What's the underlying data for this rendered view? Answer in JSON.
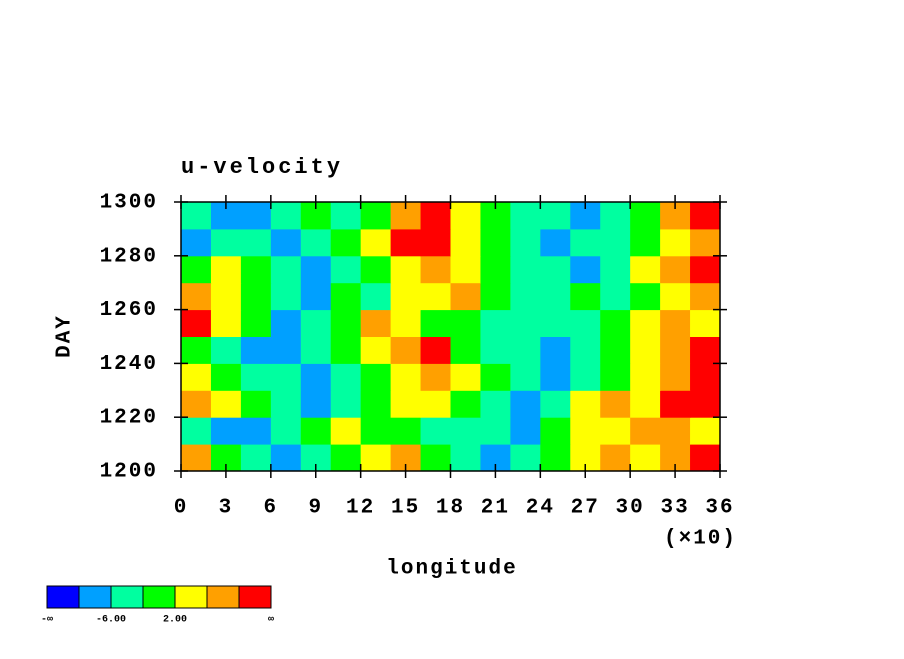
{
  "chart_data": {
    "type": "heatmap",
    "title": "u-velocity",
    "xlabel": "longitude",
    "ylabel": "DAY",
    "x_multiplier_label": "(×10)",
    "xlim": [
      0,
      36
    ],
    "xticks": [
      0,
      3,
      6,
      9,
      12,
      15,
      18,
      21,
      24,
      27,
      30,
      33,
      36
    ],
    "ylim": [
      1200,
      1300
    ],
    "yticks": [
      1200,
      1220,
      1240,
      1260,
      1280,
      1300
    ],
    "x": [
      1,
      3,
      5,
      7,
      9,
      11,
      13,
      15,
      17,
      19,
      21,
      23,
      25,
      27,
      29,
      31,
      33,
      35
    ],
    "y": [
      1205,
      1215,
      1225,
      1235,
      1245,
      1255,
      1265,
      1275,
      1285,
      1295
    ],
    "z": [
      [
        8,
        0,
        -4,
        -8,
        -4,
        0,
        4,
        8,
        0,
        -4,
        -8,
        -4,
        0,
        4,
        8,
        4,
        8,
        12
      ],
      [
        -4,
        -8,
        -8,
        -4,
        0,
        4,
        0,
        0,
        -4,
        -4,
        -4,
        -8,
        0,
        4,
        4,
        8,
        8,
        4
      ],
      [
        8,
        4,
        0,
        -4,
        -8,
        -4,
        0,
        4,
        4,
        0,
        -4,
        -8,
        -4,
        4,
        8,
        4,
        12,
        12
      ],
      [
        4,
        0,
        -4,
        -4,
        -8,
        -4,
        0,
        4,
        8,
        4,
        0,
        -4,
        -8,
        -4,
        0,
        4,
        8,
        12
      ],
      [
        0,
        -4,
        -8,
        -8,
        -4,
        0,
        4,
        8,
        12,
        0,
        -4,
        -4,
        -8,
        -4,
        0,
        4,
        8,
        12
      ],
      [
        12,
        4,
        0,
        -8,
        -4,
        0,
        8,
        4,
        0,
        0,
        -4,
        -4,
        -4,
        -4,
        0,
        4,
        8,
        4
      ],
      [
        8,
        4,
        0,
        -4,
        -8,
        0,
        -4,
        4,
        4,
        8,
        0,
        -4,
        -4,
        0,
        -4,
        0,
        4,
        8
      ],
      [
        0,
        4,
        0,
        -4,
        -8,
        -4,
        0,
        4,
        8,
        4,
        0,
        -4,
        -4,
        -8,
        -4,
        4,
        8,
        12
      ],
      [
        -8,
        -4,
        -4,
        -8,
        -4,
        0,
        4,
        12,
        12,
        4,
        0,
        -4,
        -8,
        -4,
        -4,
        0,
        4,
        8
      ],
      [
        -4,
        -8,
        -8,
        -4,
        0,
        -4,
        0,
        8,
        12,
        4,
        0,
        -4,
        -4,
        -8,
        -4,
        0,
        8,
        12
      ]
    ],
    "levels": [
      -10,
      -6,
      -2,
      2,
      6,
      10
    ],
    "colors": [
      "#0000ff",
      "#00a0ff",
      "#00ffa0",
      "#00ff00",
      "#ffff00",
      "#ffa000",
      "#ff0000"
    ],
    "colorbar_ticks": [
      "-∞",
      {
        "value": -6,
        "label": "-6.00"
      },
      {
        "value": 2,
        "label": "2.00"
      },
      "∞"
    ]
  }
}
